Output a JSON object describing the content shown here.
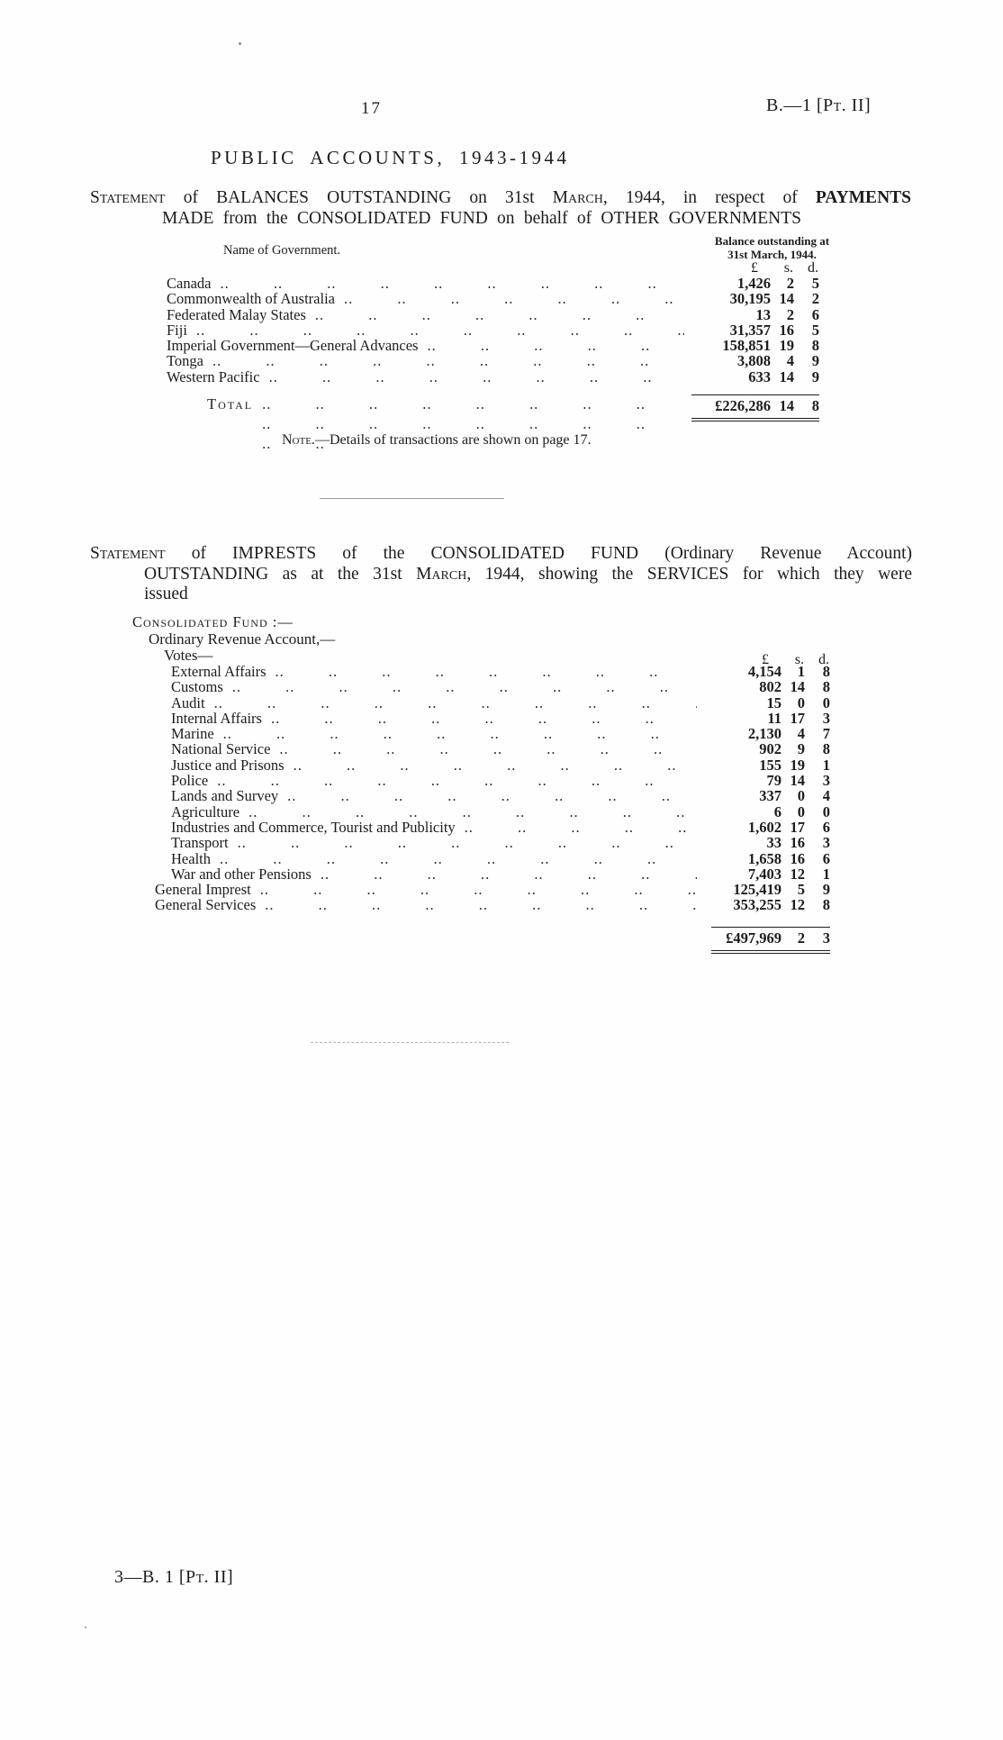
{
  "page": {
    "number": "17",
    "doc_ref": "B.—1 [Pt. II]",
    "title": "PUBLIC ACCOUNTS, 1943-1944",
    "footer": "3—B. 1 [Pt. II]",
    "leader_pattern": ".."
  },
  "statement1": {
    "line1_statement": "Statement",
    "line1_a": " of BALANCES OUTSTANDING on 31st ",
    "line1_march": "March",
    "line1_b": ", 1944, in respect of ",
    "line1_payments": "PAYMENTS",
    "line2": "MADE from the CONSOLIDATED FUND on behalf of OTHER GOVERNMENTS"
  },
  "table1": {
    "name_header": "Name of Government.",
    "balance_header_line1": "Balance outstanding at",
    "balance_header_line2": "31st March, 1944.",
    "currency_headers": [
      "£",
      "s.",
      "d."
    ],
    "rows": [
      {
        "name": "Canada",
        "pounds": "1,426",
        "s": "2",
        "d": "5"
      },
      {
        "name": "Commonwealth of Australia",
        "pounds": "30,195",
        "s": "14",
        "d": "2"
      },
      {
        "name": "Federated Malay States",
        "pounds": "13",
        "s": "2",
        "d": "6"
      },
      {
        "name": "Fiji",
        "pounds": "31,357",
        "s": "16",
        "d": "5"
      },
      {
        "name": "Imperial Government—General Advances",
        "pounds": "158,851",
        "s": "19",
        "d": "8"
      },
      {
        "name": "Tonga",
        "pounds": "3,808",
        "s": "4",
        "d": "9"
      },
      {
        "name": "Western Pacific",
        "pounds": "633",
        "s": "14",
        "d": "9"
      }
    ],
    "total_label": "Total",
    "total": {
      "pounds": "£226,286",
      "s": "14",
      "d": "8"
    },
    "note_label": "Note.",
    "note_text": "—Details of transactions are shown on page 17."
  },
  "statement2": {
    "line1_statement": "Statement",
    "line1_a": " of IMPRESTS of the CONSOLIDATED FUND (Ordinary Revenue Account)",
    "line2_a": "OUTSTANDING as at the 31st ",
    "line2_march": "March",
    "line2_b": ", 1944, showing the SERVICES for which they were",
    "line3": "issued"
  },
  "table2": {
    "fund_heading": "Consolidated Fund :—",
    "account_heading": "Ordinary Revenue Account,—",
    "votes_heading": "Votes—",
    "currency_headers": [
      "£",
      "s.",
      "d."
    ],
    "rows": [
      {
        "name": "External Affairs",
        "pounds": "4,154",
        "s": "1",
        "d": "8"
      },
      {
        "name": "Customs",
        "pounds": "802",
        "s": "14",
        "d": "8"
      },
      {
        "name": "Audit",
        "pounds": "15",
        "s": "0",
        "d": "0"
      },
      {
        "name": "Internal Affairs",
        "pounds": "11",
        "s": "17",
        "d": "3"
      },
      {
        "name": "Marine",
        "pounds": "2,130",
        "s": "4",
        "d": "7"
      },
      {
        "name": "National Service",
        "pounds": "902",
        "s": "9",
        "d": "8"
      },
      {
        "name": "Justice and Prisons",
        "pounds": "155",
        "s": "19",
        "d": "1"
      },
      {
        "name": "Police",
        "pounds": "79",
        "s": "14",
        "d": "3"
      },
      {
        "name": "Lands and Survey",
        "pounds": "337",
        "s": "0",
        "d": "4"
      },
      {
        "name": "Agriculture",
        "pounds": "6",
        "s": "0",
        "d": "0"
      },
      {
        "name": "Industries and Commerce, Tourist and Publicity",
        "pounds": "1,602",
        "s": "17",
        "d": "6"
      },
      {
        "name": "Transport",
        "pounds": "33",
        "s": "16",
        "d": "3"
      },
      {
        "name": "Health",
        "pounds": "1,658",
        "s": "16",
        "d": "6"
      },
      {
        "name": "War and other Pensions",
        "pounds": "7,403",
        "s": "12",
        "d": "1"
      },
      {
        "name": "General Imprest",
        "pounds": "125,419",
        "s": "5",
        "d": "9",
        "outdent": true
      },
      {
        "name": "General Services",
        "pounds": "353,255",
        "s": "12",
        "d": "8",
        "outdent": true
      }
    ],
    "total": {
      "pounds": "£497,969",
      "s": "2",
      "d": "3"
    }
  }
}
